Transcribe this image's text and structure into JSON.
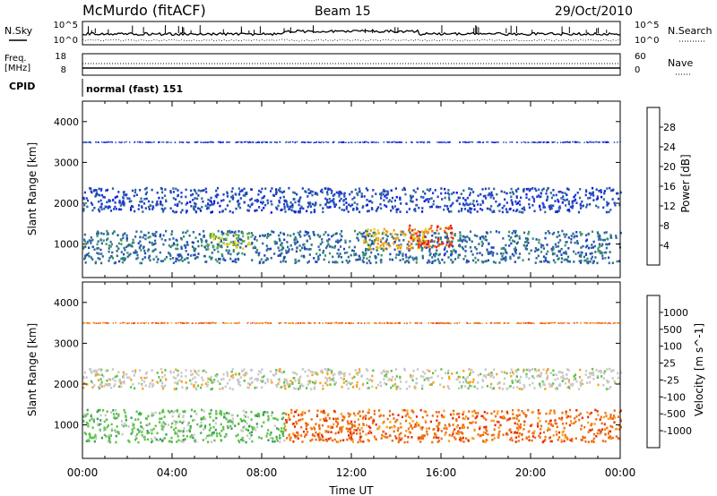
{
  "header": {
    "station": "McMurdo (fitACF)",
    "beam": "Beam 15",
    "date": "29/Oct/2010"
  },
  "status_panels": {
    "nsky_label": "N.Sky",
    "nsky_ticks": [
      "10^5",
      "10^0"
    ],
    "nsearch_label": "N.Search",
    "nsearch_ticks": [
      "10^5",
      "10^0"
    ],
    "freq_label_line1": "Freq.",
    "freq_label_line2": "[MHz]",
    "freq_ticks": [
      "18",
      "8"
    ],
    "nave_label": "Nave",
    "nave_ticks": [
      "60",
      "0"
    ],
    "cpid_label": "CPID",
    "cpid_value": "normal (fast) 151"
  },
  "chart_data": [
    {
      "type": "heatmap",
      "name": "power",
      "ylabel": "Slant Range [km]",
      "ylim": [
        180,
        4500
      ],
      "yticks": [
        "1000",
        "2000",
        "3000",
        "4000"
      ],
      "ytick_values": [
        1000,
        2000,
        3000,
        4000
      ],
      "xlim_hours": [
        0,
        24
      ],
      "colorbar": {
        "label": "Power [dB]",
        "tick_labels": [
          "4",
          "8",
          "12",
          "16",
          "20",
          "24",
          "28"
        ],
        "tick_values": [
          4,
          8,
          12,
          16,
          20,
          24,
          28
        ],
        "range": [
          0,
          32
        ],
        "colors": [
          "#0a10e6",
          "#2040c8",
          "#2e6a99",
          "#3d9367",
          "#5fb248",
          "#e6cf1f",
          "#f59a14",
          "#ee6510",
          "#e8200a"
        ]
      },
      "bands": [
        {
          "range_km": [
            560,
            1350
          ],
          "hours": [
            0,
            24
          ],
          "value": 9
        },
        {
          "range_km": [
            900,
            1300
          ],
          "hours": [
            5.5,
            7.5
          ],
          "value": 18
        },
        {
          "range_km": [
            900,
            1400
          ],
          "hours": [
            12.5,
            15.5
          ],
          "value": 22
        },
        {
          "range_km": [
            950,
            1500
          ],
          "hours": [
            14.5,
            16.5
          ],
          "value": 28
        },
        {
          "range_km": [
            1800,
            2400
          ],
          "hours": [
            0,
            24
          ],
          "value": 6
        },
        {
          "range_km": [
            3500,
            3520
          ],
          "hours": [
            0,
            24
          ],
          "value": 5
        }
      ]
    },
    {
      "type": "heatmap",
      "name": "velocity",
      "ylabel": "Slant Range [km]",
      "ylim": [
        180,
        4500
      ],
      "yticks": [
        "1000",
        "2000",
        "3000",
        "4000"
      ],
      "ytick_values": [
        1000,
        2000,
        3000,
        4000
      ],
      "xlabel": "Time UT",
      "xticks": [
        "00:00",
        "04:00",
        "08:00",
        "12:00",
        "16:00",
        "20:00",
        "00:00"
      ],
      "xtick_hours": [
        0,
        4,
        8,
        12,
        16,
        20,
        24
      ],
      "colorbar": {
        "label": "Velocity [m s^-1]",
        "tick_labels": [
          "1000",
          "500",
          "100",
          "25",
          "-25",
          "-100",
          "-500",
          "-1000"
        ],
        "colors": [
          "#1030c0",
          "#3a7fbf",
          "#3e9c5a",
          "#5cc34a",
          "#c8c8c8",
          "#f6a21c",
          "#ee6e14",
          "#e62d0e",
          "#e00a0a"
        ]
      },
      "bands": [
        {
          "range_km": [
            600,
            1400
          ],
          "hours": [
            0,
            9
          ],
          "value": "100"
        },
        {
          "range_km": [
            600,
            1400
          ],
          "hours": [
            9,
            24
          ],
          "value": "-100"
        },
        {
          "range_km": [
            1900,
            2400
          ],
          "hours": [
            0,
            24
          ],
          "value": "25"
        },
        {
          "range_km": [
            3500,
            3520
          ],
          "hours": [
            0,
            24
          ],
          "value": "-100"
        }
      ]
    }
  ]
}
